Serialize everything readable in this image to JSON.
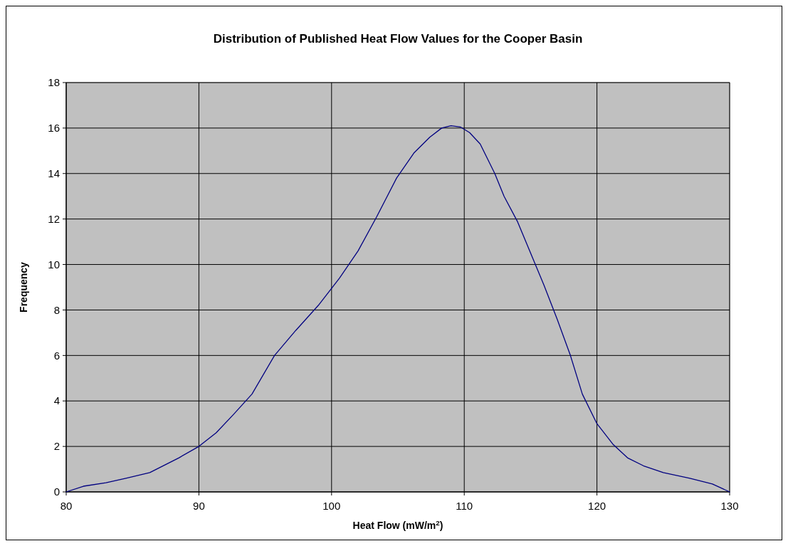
{
  "chart_data": {
    "type": "line",
    "title": "Distribution of Published Heat Flow Values for the Cooper Basin",
    "xlabel": "Heat Flow (mW/m$^{2}$)",
    "ylabel": "Frequency",
    "x": [
      80,
      81.3,
      83,
      84.5,
      86.3,
      88.5,
      90,
      91.3,
      92.6,
      94,
      95.7,
      97.3,
      99,
      100.6,
      102,
      103.4,
      104.9,
      106.2,
      107.4,
      108.3,
      109,
      109.7,
      110.4,
      111.2,
      112.3,
      113,
      114,
      115,
      116,
      117,
      118,
      118.9,
      120,
      121.2,
      122.3,
      123.5,
      125,
      127,
      128.7,
      130
    ],
    "series": [
      {
        "color": "#000080",
        "values": [
          0,
          0.25,
          0.4,
          0.6,
          0.85,
          1.5,
          2.0,
          2.6,
          3.4,
          4.3,
          6.0,
          7.1,
          8.2,
          9.4,
          10.6,
          12.1,
          13.8,
          14.9,
          15.6,
          16.0,
          16.1,
          16.05,
          15.8,
          15.3,
          14.0,
          13.0,
          11.9,
          10.5,
          9.1,
          7.6,
          6.0,
          4.3,
          3.0,
          2.1,
          1.5,
          1.15,
          0.85,
          0.6,
          0.35,
          0
        ]
      }
    ],
    "xlim": [
      80,
      130
    ],
    "xticks": [
      80,
      90,
      100,
      110,
      120,
      130
    ],
    "ylim": [
      0,
      18
    ],
    "yticks": [
      0,
      2,
      4,
      6,
      8,
      10,
      12,
      14,
      16,
      18
    ],
    "grid": true,
    "marker": "none",
    "line_style": "solid"
  }
}
